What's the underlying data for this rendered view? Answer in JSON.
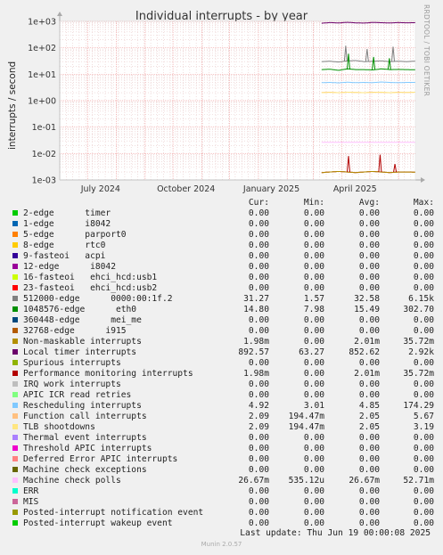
{
  "side_credit": "RRDTOOL / TOBI OETIKER",
  "footer": {
    "last_update": "Last update: Thu Jun 19 00:00:08 2025",
    "version": "Munin 2.0.57"
  },
  "legend_headers": [
    "Cur:",
    "Min:",
    "Avg:",
    "Max:"
  ],
  "legend": [
    {
      "color": "#00cc00",
      "label": "2-edge      timer",
      "cur": "0.00",
      "min": "0.00",
      "avg": "0.00",
      "max": "0.00"
    },
    {
      "color": "#0066b3",
      "label": "1-edge      i8042",
      "cur": "0.00",
      "min": "0.00",
      "avg": "0.00",
      "max": "0.00"
    },
    {
      "color": "#ff8000",
      "label": "5-edge      parport0",
      "cur": "0.00",
      "min": "0.00",
      "avg": "0.00",
      "max": "0.00"
    },
    {
      "color": "#ffcc00",
      "label": "8-edge      rtc0",
      "cur": "0.00",
      "min": "0.00",
      "avg": "0.00",
      "max": "0.00"
    },
    {
      "color": "#330099",
      "label": "9-fasteoi   acpi",
      "cur": "0.00",
      "min": "0.00",
      "avg": "0.00",
      "max": "0.00"
    },
    {
      "color": "#990099",
      "label": "12-edge      i8042",
      "cur": "0.00",
      "min": "0.00",
      "avg": "0.00",
      "max": "0.00"
    },
    {
      "color": "#ccff00",
      "label": "16-fasteoi   ehci_hcd:usb1",
      "cur": "0.00",
      "min": "0.00",
      "avg": "0.00",
      "max": "0.00"
    },
    {
      "color": "#ff0000",
      "label": "23-fasteoi   ehci_hcd:usb2",
      "cur": "0.00",
      "min": "0.00",
      "avg": "0.00",
      "max": "0.00"
    },
    {
      "color": "#808080",
      "label": "512000-edge      0000:00:1f.2",
      "cur": "31.27",
      "min": "1.57",
      "avg": "32.58",
      "max": "6.15k"
    },
    {
      "color": "#008f00",
      "label": "1048576-edge      eth0",
      "cur": "14.80",
      "min": "7.98",
      "avg": "15.49",
      "max": "302.70"
    },
    {
      "color": "#00487d",
      "label": "360448-edge      mei_me",
      "cur": "0.00",
      "min": "0.00",
      "avg": "0.00",
      "max": "0.00"
    },
    {
      "color": "#b35a00",
      "label": "32768-edge      i915",
      "cur": "0.00",
      "min": "0.00",
      "avg": "0.00",
      "max": "0.00"
    },
    {
      "color": "#b38f00",
      "label": "Non-maskable interrupts",
      "cur": "1.98m",
      "min": "0.00",
      "avg": "2.01m",
      "max": "35.72m"
    },
    {
      "color": "#6b006b",
      "label": "Local timer interrupts",
      "cur": "892.57",
      "min": "63.27",
      "avg": "852.62",
      "max": "2.92k"
    },
    {
      "color": "#8fb300",
      "label": "Spurious interrupts",
      "cur": "0.00",
      "min": "0.00",
      "avg": "0.00",
      "max": "0.00"
    },
    {
      "color": "#b30000",
      "label": "Performance monitoring interrupts",
      "cur": "1.98m",
      "min": "0.00",
      "avg": "2.01m",
      "max": "35.72m"
    },
    {
      "color": "#bebebe",
      "label": "IRQ work interrupts",
      "cur": "0.00",
      "min": "0.00",
      "avg": "0.00",
      "max": "0.00"
    },
    {
      "color": "#80ff80",
      "label": "APIC ICR read retries",
      "cur": "0.00",
      "min": "0.00",
      "avg": "0.00",
      "max": "0.00"
    },
    {
      "color": "#80c9ff",
      "label": "Rescheduling interrupts",
      "cur": "4.92",
      "min": "3.01",
      "avg": "4.85",
      "max": "174.29"
    },
    {
      "color": "#ffc080",
      "label": "Function call interrupts",
      "cur": "2.09",
      "min": "194.47m",
      "avg": "2.05",
      "max": "5.67"
    },
    {
      "color": "#ffe680",
      "label": "TLB shootdowns",
      "cur": "2.09",
      "min": "194.47m",
      "avg": "2.05",
      "max": "3.19"
    },
    {
      "color": "#aa80ff",
      "label": "Thermal event interrupts",
      "cur": "0.00",
      "min": "0.00",
      "avg": "0.00",
      "max": "0.00"
    },
    {
      "color": "#ee00cc",
      "label": "Threshold APIC interrupts",
      "cur": "0.00",
      "min": "0.00",
      "avg": "0.00",
      "max": "0.00"
    },
    {
      "color": "#ff8080",
      "label": "Deferred Error APIC interrupts",
      "cur": "0.00",
      "min": "0.00",
      "avg": "0.00",
      "max": "0.00"
    },
    {
      "color": "#666600",
      "label": "Machine check exceptions",
      "cur": "0.00",
      "min": "0.00",
      "avg": "0.00",
      "max": "0.00"
    },
    {
      "color": "#ffbfff",
      "label": "Machine check polls",
      "cur": "26.67m",
      "min": "535.12u",
      "avg": "26.67m",
      "max": "52.71m"
    },
    {
      "color": "#00ffcc",
      "label": "ERR",
      "cur": "0.00",
      "min": "0.00",
      "avg": "0.00",
      "max": "0.00"
    },
    {
      "color": "#cc6699",
      "label": "MIS",
      "cur": "0.00",
      "min": "0.00",
      "avg": "0.00",
      "max": "0.00"
    },
    {
      "color": "#999900",
      "label": "Posted-interrupt notification event",
      "cur": "0.00",
      "min": "0.00",
      "avg": "0.00",
      "max": "0.00"
    },
    {
      "color": "#00cc00",
      "label": "Posted-interrupt wakeup event",
      "cur": "0.00",
      "min": "0.00",
      "avg": "0.00",
      "max": "0.00"
    }
  ],
  "chart_data": {
    "type": "line",
    "title": "Individual interrupts - by year",
    "ylabel": "interrupts / second",
    "xlabel": "",
    "y_scale": "log",
    "ylim": [
      0.001,
      1000
    ],
    "y_ticks": [
      "1e-03",
      "1e-02",
      "1e-01",
      "1e+00",
      "1e+01",
      "1e+02",
      "1e+03"
    ],
    "x_ticks": [
      "July 2024",
      "October 2024",
      "January 2025",
      "April 2025"
    ],
    "x_range": [
      "2024-06-01",
      "2025-06-19"
    ],
    "data_start": "2025-03-10",
    "grid": true,
    "series": [
      {
        "name": "Local timer interrupts",
        "color": "#6b006b",
        "values": [
          850,
          900,
          870,
          920,
          880,
          860,
          910,
          890,
          870,
          900,
          880,
          892.57
        ]
      },
      {
        "name": "512000-edge      0000:00:1f.2",
        "color": "#808080",
        "values": [
          30,
          31,
          29,
          32,
          33,
          30,
          31,
          32,
          30,
          31,
          30,
          31.27
        ]
      },
      {
        "name": "1048576-edge      eth0",
        "color": "#008f00",
        "values": [
          15,
          15.5,
          14,
          16,
          15,
          15,
          14.5,
          16,
          15,
          15.2,
          15,
          14.8
        ]
      },
      {
        "name": "Rescheduling interrupts",
        "color": "#80c9ff",
        "values": [
          4.8,
          4.9,
          4.7,
          5,
          4.8,
          4.9,
          4.8,
          5.1,
          4.9,
          4.8,
          4.9,
          4.92
        ]
      },
      {
        "name": "Function call interrupts",
        "color": "#ffc080",
        "values": [
          2.05,
          2.1,
          2.0,
          2.1,
          2.05,
          2.0,
          2.1,
          2.05,
          2.0,
          2.1,
          2.05,
          2.09
        ]
      },
      {
        "name": "TLB shootdowns",
        "color": "#ffe680",
        "values": [
          2.0,
          2.05,
          2.0,
          2.1,
          2.05,
          2.0,
          2.05,
          2.1,
          2.0,
          2.05,
          2.05,
          2.09
        ]
      },
      {
        "name": "Machine check polls",
        "color": "#ffbfff",
        "values": [
          0.0267,
          0.0267,
          0.0267,
          0.0267,
          0.0267,
          0.0267,
          0.0267,
          0.0267,
          0.0267,
          0.0267,
          0.0267,
          0.0267
        ]
      },
      {
        "name": "Performance monitoring interrupts",
        "color": "#b30000",
        "values": [
          0.0019,
          0.002,
          0.0021,
          0.002,
          0.0019,
          0.002,
          0.0021,
          0.002,
          0.0019,
          0.002,
          0.002,
          0.00198
        ]
      },
      {
        "name": "Non-maskable interrupts",
        "color": "#b38f00",
        "values": [
          0.0019,
          0.002,
          0.0021,
          0.002,
          0.0019,
          0.002,
          0.0021,
          0.002,
          0.0019,
          0.002,
          0.002,
          0.00198
        ]
      }
    ]
  }
}
